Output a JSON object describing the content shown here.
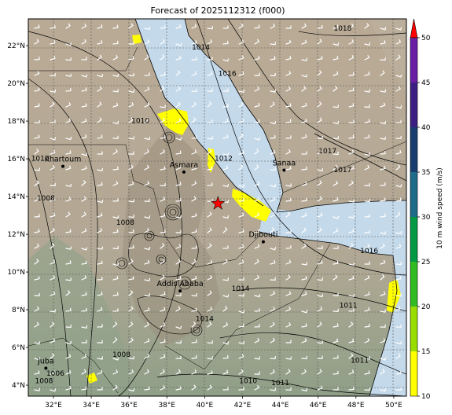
{
  "title": "Forecast of 2025112312 (f000)",
  "lat_labels": [
    "22°N",
    "20°N",
    "18°N",
    "16°N",
    "14°N",
    "12°N",
    "10°N",
    "8°N",
    "6°N",
    "4°N"
  ],
  "lon_labels": [
    "32°E",
    "34°E",
    "36°E",
    "38°E",
    "40°E",
    "42°E",
    "44°E",
    "46°E",
    "48°E",
    "50°E"
  ],
  "cities": [
    {
      "name": "Khartoum",
      "lon": 32.5,
      "lat": 15.6
    },
    {
      "name": "Asmara",
      "lon": 38.9,
      "lat": 15.3
    },
    {
      "name": "Sanaa",
      "lon": 44.2,
      "lat": 15.4
    },
    {
      "name": "Djibouti",
      "lon": 43.1,
      "lat": 11.6
    },
    {
      "name": "Addis Ababa",
      "lon": 38.7,
      "lat": 9.0
    },
    {
      "name": "Juba",
      "lon": 31.6,
      "lat": 4.9
    }
  ],
  "storm_marker": {
    "symbol": "★",
    "lon": 40.7,
    "lat": 13.6,
    "color": "#ff0000"
  },
  "isobar_labels": [
    {
      "text": "1018",
      "lon": 47.3,
      "lat": 22.8
    },
    {
      "text": "1016",
      "lon": 41.2,
      "lat": 20.4
    },
    {
      "text": "1014",
      "lon": 39.8,
      "lat": 21.8
    },
    {
      "text": "1012",
      "lon": 41.0,
      "lat": 15.9
    },
    {
      "text": "1010",
      "lon": 36.6,
      "lat": 17.9
    },
    {
      "text": "1010",
      "lon": 31.3,
      "lat": 15.9
    },
    {
      "text": "1008",
      "lon": 31.6,
      "lat": 13.8
    },
    {
      "text": "1008",
      "lon": 35.8,
      "lat": 12.5
    },
    {
      "text": "1017",
      "lon": 46.5,
      "lat": 16.3
    },
    {
      "text": "1017",
      "lon": 47.3,
      "lat": 15.3
    },
    {
      "text": "1016",
      "lon": 48.7,
      "lat": 11.0
    },
    {
      "text": "1014",
      "lon": 41.9,
      "lat": 9.0
    },
    {
      "text": "1014",
      "lon": 40.0,
      "lat": 7.4
    },
    {
      "text": "1011",
      "lon": 47.6,
      "lat": 8.1
    },
    {
      "text": "1011",
      "lon": 48.2,
      "lat": 5.2
    },
    {
      "text": "1011",
      "lon": 44.0,
      "lat": 4.0
    },
    {
      "text": "1010",
      "lon": 42.3,
      "lat": 4.1
    },
    {
      "text": "1006",
      "lon": 32.1,
      "lat": 4.5
    },
    {
      "text": "1008",
      "lon": 31.5,
      "lat": 4.1
    },
    {
      "text": "1008",
      "lon": 35.6,
      "lat": 5.5
    }
  ],
  "colorbar": {
    "label": "10 m wind speed (m/s)",
    "ticks": [
      "10",
      "15",
      "20",
      "25",
      "30",
      "35",
      "40",
      "45",
      "50"
    ],
    "min": 10,
    "max": 50,
    "colors": [
      "#ffff00",
      "#99dd00",
      "#33bb22",
      "#009944",
      "#1e6b8a",
      "#183e6f",
      "#3b1f82",
      "#6a1ea4",
      "#9a2fb8",
      "#ff0000"
    ]
  },
  "colors": {
    "land": "#b7aa97",
    "land_highlands": "#9a8f7e",
    "sea": "#c7dceb",
    "wind_barb": "#ffffff",
    "strong_wind": "#ffff00"
  }
}
